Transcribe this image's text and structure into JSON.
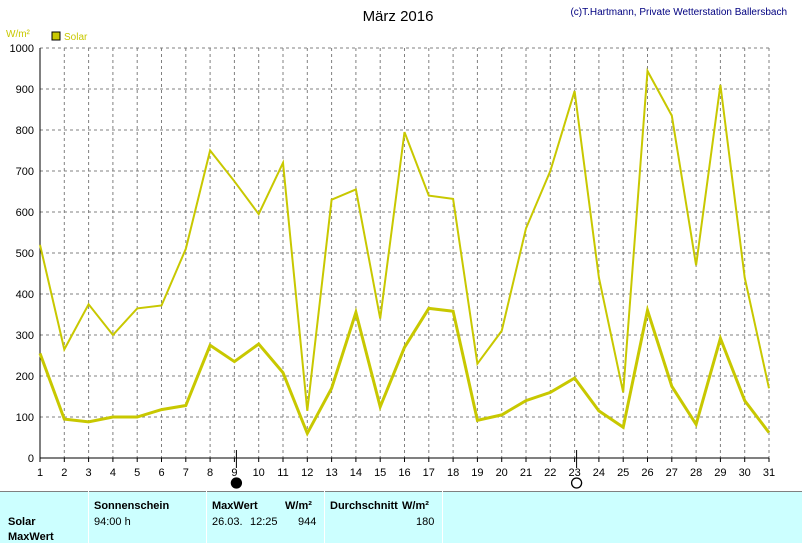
{
  "header": {
    "title": "März 2016",
    "credit": "(c)T.Hartmann, Private Wetterstation Ballersbach",
    "unit": "W/m²"
  },
  "legend": {
    "label": "Solar",
    "color": "#c8c800"
  },
  "chart_data": {
    "type": "line",
    "title": "März 2016",
    "ylabel": "W/m²",
    "ylim": [
      0,
      1000
    ],
    "yticks": [
      "0",
      "100",
      "200",
      "300",
      "400",
      "500",
      "600",
      "700",
      "800",
      "900",
      "1000"
    ],
    "x": [
      "1",
      "2",
      "3",
      "4",
      "5",
      "6",
      "7",
      "8",
      "9",
      "10",
      "11",
      "12",
      "13",
      "14",
      "15",
      "16",
      "17",
      "18",
      "19",
      "20",
      "21",
      "22",
      "23",
      "24",
      "25",
      "26",
      "27",
      "28",
      "29",
      "30",
      "31"
    ],
    "grid": true,
    "legend_position": "top-left",
    "series": [
      {
        "name": "Solar",
        "role": "max",
        "color": "#c8c800",
        "values": [
          520,
          265,
          375,
          300,
          365,
          372,
          510,
          750,
          675,
          595,
          720,
          115,
          630,
          655,
          340,
          795,
          640,
          632,
          230,
          310,
          560,
          700,
          895,
          440,
          160,
          944,
          835,
          470,
          910,
          440,
          170
        ]
      },
      {
        "name": "Solar",
        "role": "mean",
        "color": "#c8c800",
        "values": [
          255,
          95,
          88,
          100,
          100,
          118,
          128,
          275,
          235,
          278,
          208,
          60,
          170,
          355,
          125,
          270,
          365,
          358,
          92,
          105,
          140,
          160,
          195,
          115,
          75,
          360,
          175,
          82,
          292,
          140,
          62
        ]
      }
    ],
    "moon_markers": [
      {
        "day": "9",
        "phase": "new"
      },
      {
        "day": "23",
        "phase": "full"
      }
    ]
  },
  "info_table": {
    "row_label_solar": "Solar",
    "row_label_max": "MaxWert",
    "col_sunshine": "Sonnenschein",
    "col_max": "MaxWert",
    "col_max_unit": "W/m²",
    "col_avg": "Durchschnitt",
    "col_avg_unit": "W/m²",
    "sunshine_value": "94:00 h",
    "max_date": "26.03.",
    "max_time": "12:25",
    "max_value": "944",
    "avg_value": "180"
  }
}
